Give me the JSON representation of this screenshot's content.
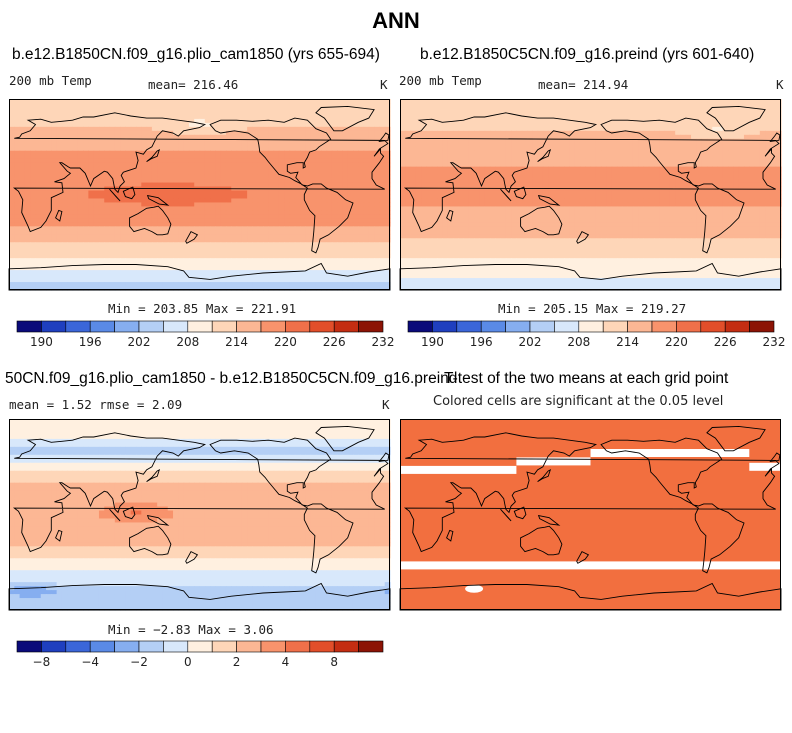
{
  "main_title": "ANN",
  "palettes": {
    "absolute": [
      "#0a0a7a",
      "#1f3fbf",
      "#3b66d9",
      "#5a8ae6",
      "#86aef0",
      "#b4cff5",
      "#d8e8fb",
      "#fff0e0",
      "#fed6b8",
      "#fcb794",
      "#f8936c",
      "#f0704a",
      "#e24e2a",
      "#c42d12",
      "#8c1305"
    ],
    "difference": [
      "#0a0a7a",
      "#1f3fbf",
      "#3b66d9",
      "#5a8ae6",
      "#86aef0",
      "#b4cff5",
      "#d8e8fb",
      "#fff0e0",
      "#fed6b8",
      "#fcb794",
      "#f8936c",
      "#f0704a",
      "#e24e2a",
      "#c42d12",
      "#8c1305"
    ],
    "significant": "#f26f3f",
    "land_outline": "#000000"
  },
  "chart_data": [
    {
      "type": "heatmap",
      "title": "b.e12.B1850CN.f09_g16.plio_cam1850 (yrs 655-694)",
      "left_label": "200 mb Temp",
      "mean_label": "mean= 216.46",
      "units": "K",
      "min_max": "Min = 203.85 Max = 221.91",
      "colorbar_ticks": [
        "190",
        "196",
        "202",
        "208",
        "214",
        "220",
        "226",
        "232"
      ],
      "levels": [
        187,
        190,
        193,
        196,
        199,
        202,
        205,
        208,
        211,
        214,
        217,
        220,
        223,
        226,
        229,
        232
      ],
      "zonal_profile": [
        {
          "lat": 90,
          "value": 212
        },
        {
          "lat": 70,
          "value": 213
        },
        {
          "lat": 60,
          "value": 214.5
        },
        {
          "lat": 50,
          "value": 215.5
        },
        {
          "lat": 40,
          "value": 217
        },
        {
          "lat": 25,
          "value": 218.5
        },
        {
          "lat": 10,
          "value": 219
        },
        {
          "lat": 0,
          "value": 219.5
        },
        {
          "lat": -10,
          "value": 219
        },
        {
          "lat": -25,
          "value": 217.5
        },
        {
          "lat": -40,
          "value": 215.5
        },
        {
          "lat": -55,
          "value": 212
        },
        {
          "lat": -65,
          "value": 210
        },
        {
          "lat": -75,
          "value": 206
        },
        {
          "lat": -90,
          "value": 204
        }
      ],
      "anomalies": [
        {
          "lon": 150,
          "lat": 0,
          "dlon": 70,
          "dlat": 12,
          "amp": 2
        },
        {
          "lon": 180,
          "lat": 65,
          "dlon": 30,
          "dlat": 8,
          "amp": -3
        }
      ]
    },
    {
      "type": "heatmap",
      "title": "b.e12.B1850C5CN.f09_g16.preind (yrs 601-640)",
      "left_label": "200 mb Temp",
      "mean_label": "mean= 214.94",
      "units": "K",
      "min_max": "Min = 205.15 Max = 219.27",
      "colorbar_ticks": [
        "190",
        "196",
        "202",
        "208",
        "214",
        "220",
        "226",
        "232"
      ],
      "levels": [
        187,
        190,
        193,
        196,
        199,
        202,
        205,
        208,
        211,
        214,
        217,
        220,
        223,
        226,
        229,
        232
      ],
      "zonal_profile": [
        {
          "lat": 90,
          "value": 212
        },
        {
          "lat": 70,
          "value": 212.5
        },
        {
          "lat": 60,
          "value": 214
        },
        {
          "lat": 50,
          "value": 215
        },
        {
          "lat": 40,
          "value": 216
        },
        {
          "lat": 25,
          "value": 217
        },
        {
          "lat": 10,
          "value": 217.5
        },
        {
          "lat": 0,
          "value": 217.5
        },
        {
          "lat": -10,
          "value": 217
        },
        {
          "lat": -25,
          "value": 216
        },
        {
          "lat": -40,
          "value": 214.5
        },
        {
          "lat": -55,
          "value": 212
        },
        {
          "lat": -65,
          "value": 210.5
        },
        {
          "lat": -75,
          "value": 208.5
        },
        {
          "lat": -90,
          "value": 207
        }
      ],
      "anomalies": [
        {
          "lon": 150,
          "lat": 0,
          "dlon": 60,
          "dlat": 10,
          "amp": 1
        },
        {
          "lon": 300,
          "lat": 60,
          "dlon": 25,
          "dlat": 8,
          "amp": -3
        }
      ]
    },
    {
      "type": "heatmap",
      "title": "50CN.f09_g16.plio_cam1850 - b.e12.B1850C5CN.f09_g16.preind",
      "left_label": "mean =   1.52    rmse =   2.09",
      "mean_label": "",
      "units": "K",
      "min_max": "Min = −2.83 Max =   3.06",
      "colorbar_ticks": [
        "−8",
        "−4",
        "−2",
        "0",
        "2",
        "4",
        "8"
      ],
      "levels": [
        -10,
        -8,
        -6,
        -4,
        -3,
        -2,
        -1,
        -0.5,
        0.5,
        1,
        2,
        3,
        4,
        6,
        8,
        10
      ],
      "zonal_profile": [
        {
          "lat": 90,
          "value": 0.3
        },
        {
          "lat": 70,
          "value": -0.5
        },
        {
          "lat": 60,
          "value": -1.2
        },
        {
          "lat": 50,
          "value": -0.8
        },
        {
          "lat": 40,
          "value": 0.6
        },
        {
          "lat": 25,
          "value": 1.2
        },
        {
          "lat": 10,
          "value": 1.7
        },
        {
          "lat": 0,
          "value": 1.9
        },
        {
          "lat": -10,
          "value": 1.7
        },
        {
          "lat": -25,
          "value": 1.2
        },
        {
          "lat": -40,
          "value": 0.6
        },
        {
          "lat": -55,
          "value": -0.7
        },
        {
          "lat": -65,
          "value": -0.6
        },
        {
          "lat": -75,
          "value": -1.8
        },
        {
          "lat": -90,
          "value": -1.2
        }
      ],
      "anomalies": [
        {
          "lon": 120,
          "lat": 3,
          "dlon": 25,
          "dlat": 8,
          "amp": 1.2
        },
        {
          "lon": 20,
          "lat": -70,
          "dlon": 30,
          "dlat": 6,
          "amp": -1.2
        }
      ]
    },
    {
      "type": "heatmap",
      "title": "T-test of the two means at each grid point",
      "left_label": "Colored cells are significant at the 0.05 level",
      "mean_label": "",
      "units": "",
      "min_max": "",
      "colorbar_ticks": [],
      "levels": [],
      "not_significant_bands": [
        {
          "lat": 42,
          "lon_from": 0,
          "lon_to": 110
        },
        {
          "lat": 50,
          "lon_from": 110,
          "lon_to": 180
        },
        {
          "lat": 58,
          "lon_from": 180,
          "lon_to": 330
        },
        {
          "lat": 45,
          "lon_from": 330,
          "lon_to": 360
        },
        {
          "lat": -48,
          "lon_from": 0,
          "lon_to": 360
        }
      ],
      "not_significant_patches": [
        {
          "lon": 70,
          "lat": -70
        }
      ]
    }
  ]
}
